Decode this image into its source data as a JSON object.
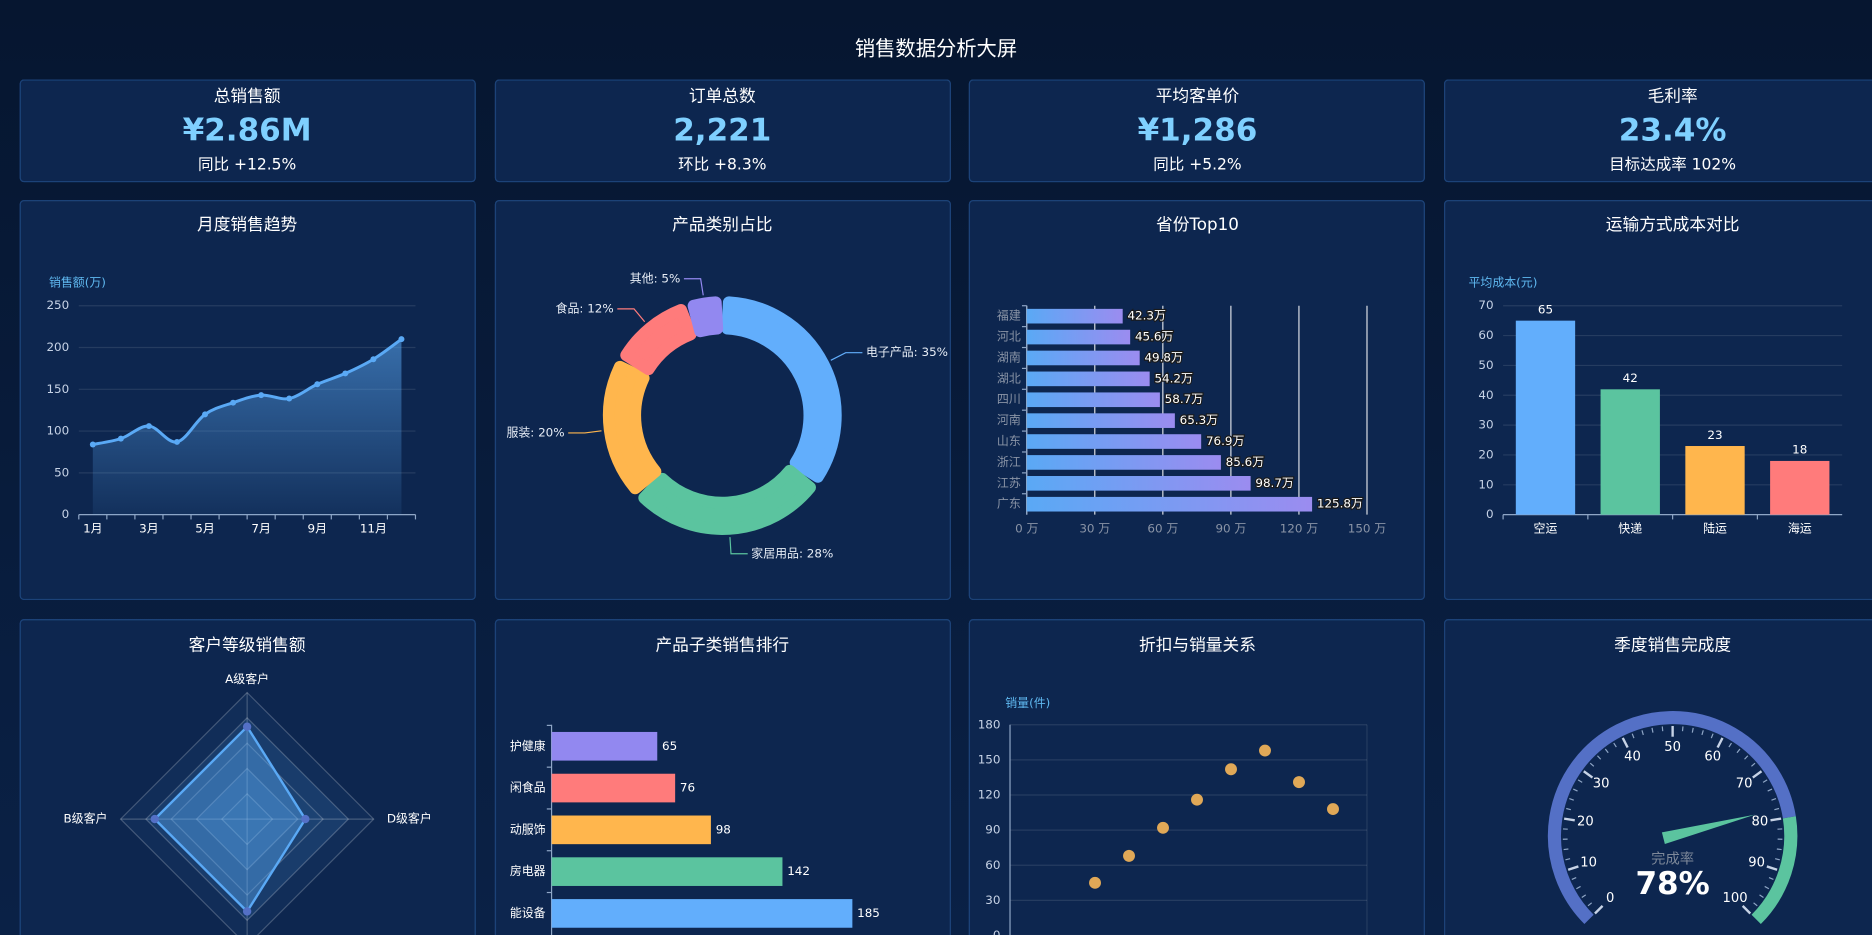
{
  "title": "销售数据分析大屏",
  "kpis": [
    {
      "label": "总销售额",
      "value": "¥2.86M",
      "note": "同比 +12.5%"
    },
    {
      "label": "订单总数",
      "value": "2,221",
      "note": "环比 +8.3%"
    },
    {
      "label": "平均客单价",
      "value": "¥1,286",
      "note": "同比 +5.2%"
    },
    {
      "label": "毛利率",
      "value": "23.4%",
      "note": "目标达成率 102%"
    }
  ],
  "chart_data": [
    {
      "type": "line",
      "title": "月度销售趋势",
      "ylabel": "销售额(万)",
      "categories": [
        "1月",
        null,
        "3月",
        null,
        "5月",
        null,
        "7月",
        null,
        "9月",
        null,
        "11月",
        null
      ],
      "values": [
        84,
        91,
        106,
        87,
        120,
        134,
        143,
        139,
        156,
        169,
        186,
        210
      ],
      "color": "#5aa9f5",
      "area": true,
      "smooth": true,
      "ylim": [
        0,
        250
      ],
      "yticks": [
        0,
        50,
        100,
        150,
        200,
        250
      ],
      "grid": true
    },
    {
      "type": "pie",
      "title": "产品类别占比",
      "donut": true,
      "labels": [
        "电子产品: 35%",
        "家居用品: 28%",
        "服装: 20%",
        "食品: 12%",
        "其他: 5%"
      ],
      "values": [
        35,
        28,
        20,
        12,
        5
      ],
      "colors": [
        "#62aefc",
        "#5bc49f",
        "#ffb64d",
        "#ff7b7b",
        "#9288f0"
      ]
    },
    {
      "type": "hbar",
      "title": "省份Top10",
      "categories": [
        "福建",
        "河北",
        "湖南",
        "湖北",
        "四川",
        "河南",
        "山东",
        "浙江",
        "江苏",
        "广东"
      ],
      "values": [
        42.3,
        45.6,
        49.8,
        54.2,
        58.7,
        65.3,
        76.9,
        85.6,
        98.7,
        125.8
      ],
      "value_labels": [
        "42.3万",
        "45.6万",
        "49.8万",
        "54.2万",
        "58.7万",
        "65.3万",
        "76.9万",
        "85.6万",
        "98.7万",
        "125.8万"
      ],
      "gradient": [
        "#5aa9f5",
        "#9b8cf0"
      ],
      "xlim": [
        0,
        150
      ],
      "xticks": [
        {
          "value": 0,
          "label": "0 万"
        },
        {
          "value": 30,
          "label": "30 万"
        },
        {
          "value": 60,
          "label": "60 万"
        },
        {
          "value": 90,
          "label": "90 万"
        },
        {
          "value": 120,
          "label": "120 万"
        },
        {
          "value": 150,
          "label": "150 万"
        }
      ],
      "grid": true
    },
    {
      "type": "bar",
      "title": "运输方式成本对比",
      "ylabel": "平均成本(元)",
      "categories": [
        "空运",
        "快递",
        "陆运",
        "海运"
      ],
      "values": [
        65,
        42,
        23,
        18
      ],
      "colors": [
        "#62aefc",
        "#5bc49f",
        "#ffb64d",
        "#ff7b7b"
      ],
      "ylim": [
        0,
        70
      ],
      "yticks": [
        0,
        10,
        20,
        30,
        40,
        50,
        60,
        70
      ],
      "grid": true
    },
    {
      "type": "radar",
      "title": "客户等级销售额",
      "indicators": [
        {
          "name": "A级客户",
          "max": 100
        },
        {
          "name": "B级客户",
          "max": 100
        },
        {
          "name": null,
          "max": 100
        },
        {
          "name": "D级客户",
          "max": 100
        }
      ],
      "values": [
        73,
        73,
        73,
        46
      ],
      "color": "#5aa9f5"
    },
    {
      "type": "hbar",
      "title": "产品子类销售排行",
      "categories": [
        "护健康",
        "闲食品",
        "动服饰",
        "房电器",
        "能设备"
      ],
      "values": [
        65,
        76,
        98,
        142,
        185
      ],
      "colors": [
        "#9288f0",
        "#ff7b7b",
        "#ffb64d",
        "#5bc49f",
        "#62aefc"
      ],
      "xlim": [
        0,
        210
      ]
    },
    {
      "type": "scatter",
      "title": "折扣与销量关系",
      "ylabel": "销量(件)",
      "x": [
        25,
        35,
        45,
        55,
        65,
        75,
        85,
        95
      ],
      "values": [
        45,
        68,
        92,
        116,
        142,
        158,
        131,
        108
      ],
      "color": "#e0a857",
      "xlim": [
        0,
        105
      ],
      "ylim": [
        0,
        180
      ],
      "yticks": [
        0,
        30,
        60,
        90,
        120,
        150,
        180
      ],
      "grid": true
    },
    {
      "type": "gauge",
      "title": "季度销售完成度",
      "name": "完成率",
      "value": 78,
      "value_label": "78%",
      "lim": [
        0,
        100
      ],
      "ticks": [
        0,
        10,
        20,
        30,
        40,
        50,
        60,
        70,
        80,
        90,
        100
      ],
      "axis_colors": [
        {
          "to": 80,
          "color": "#5470c6"
        },
        {
          "to": 100,
          "color": "#5bc49f"
        }
      ],
      "pointer_color": "#5bc49f"
    }
  ]
}
